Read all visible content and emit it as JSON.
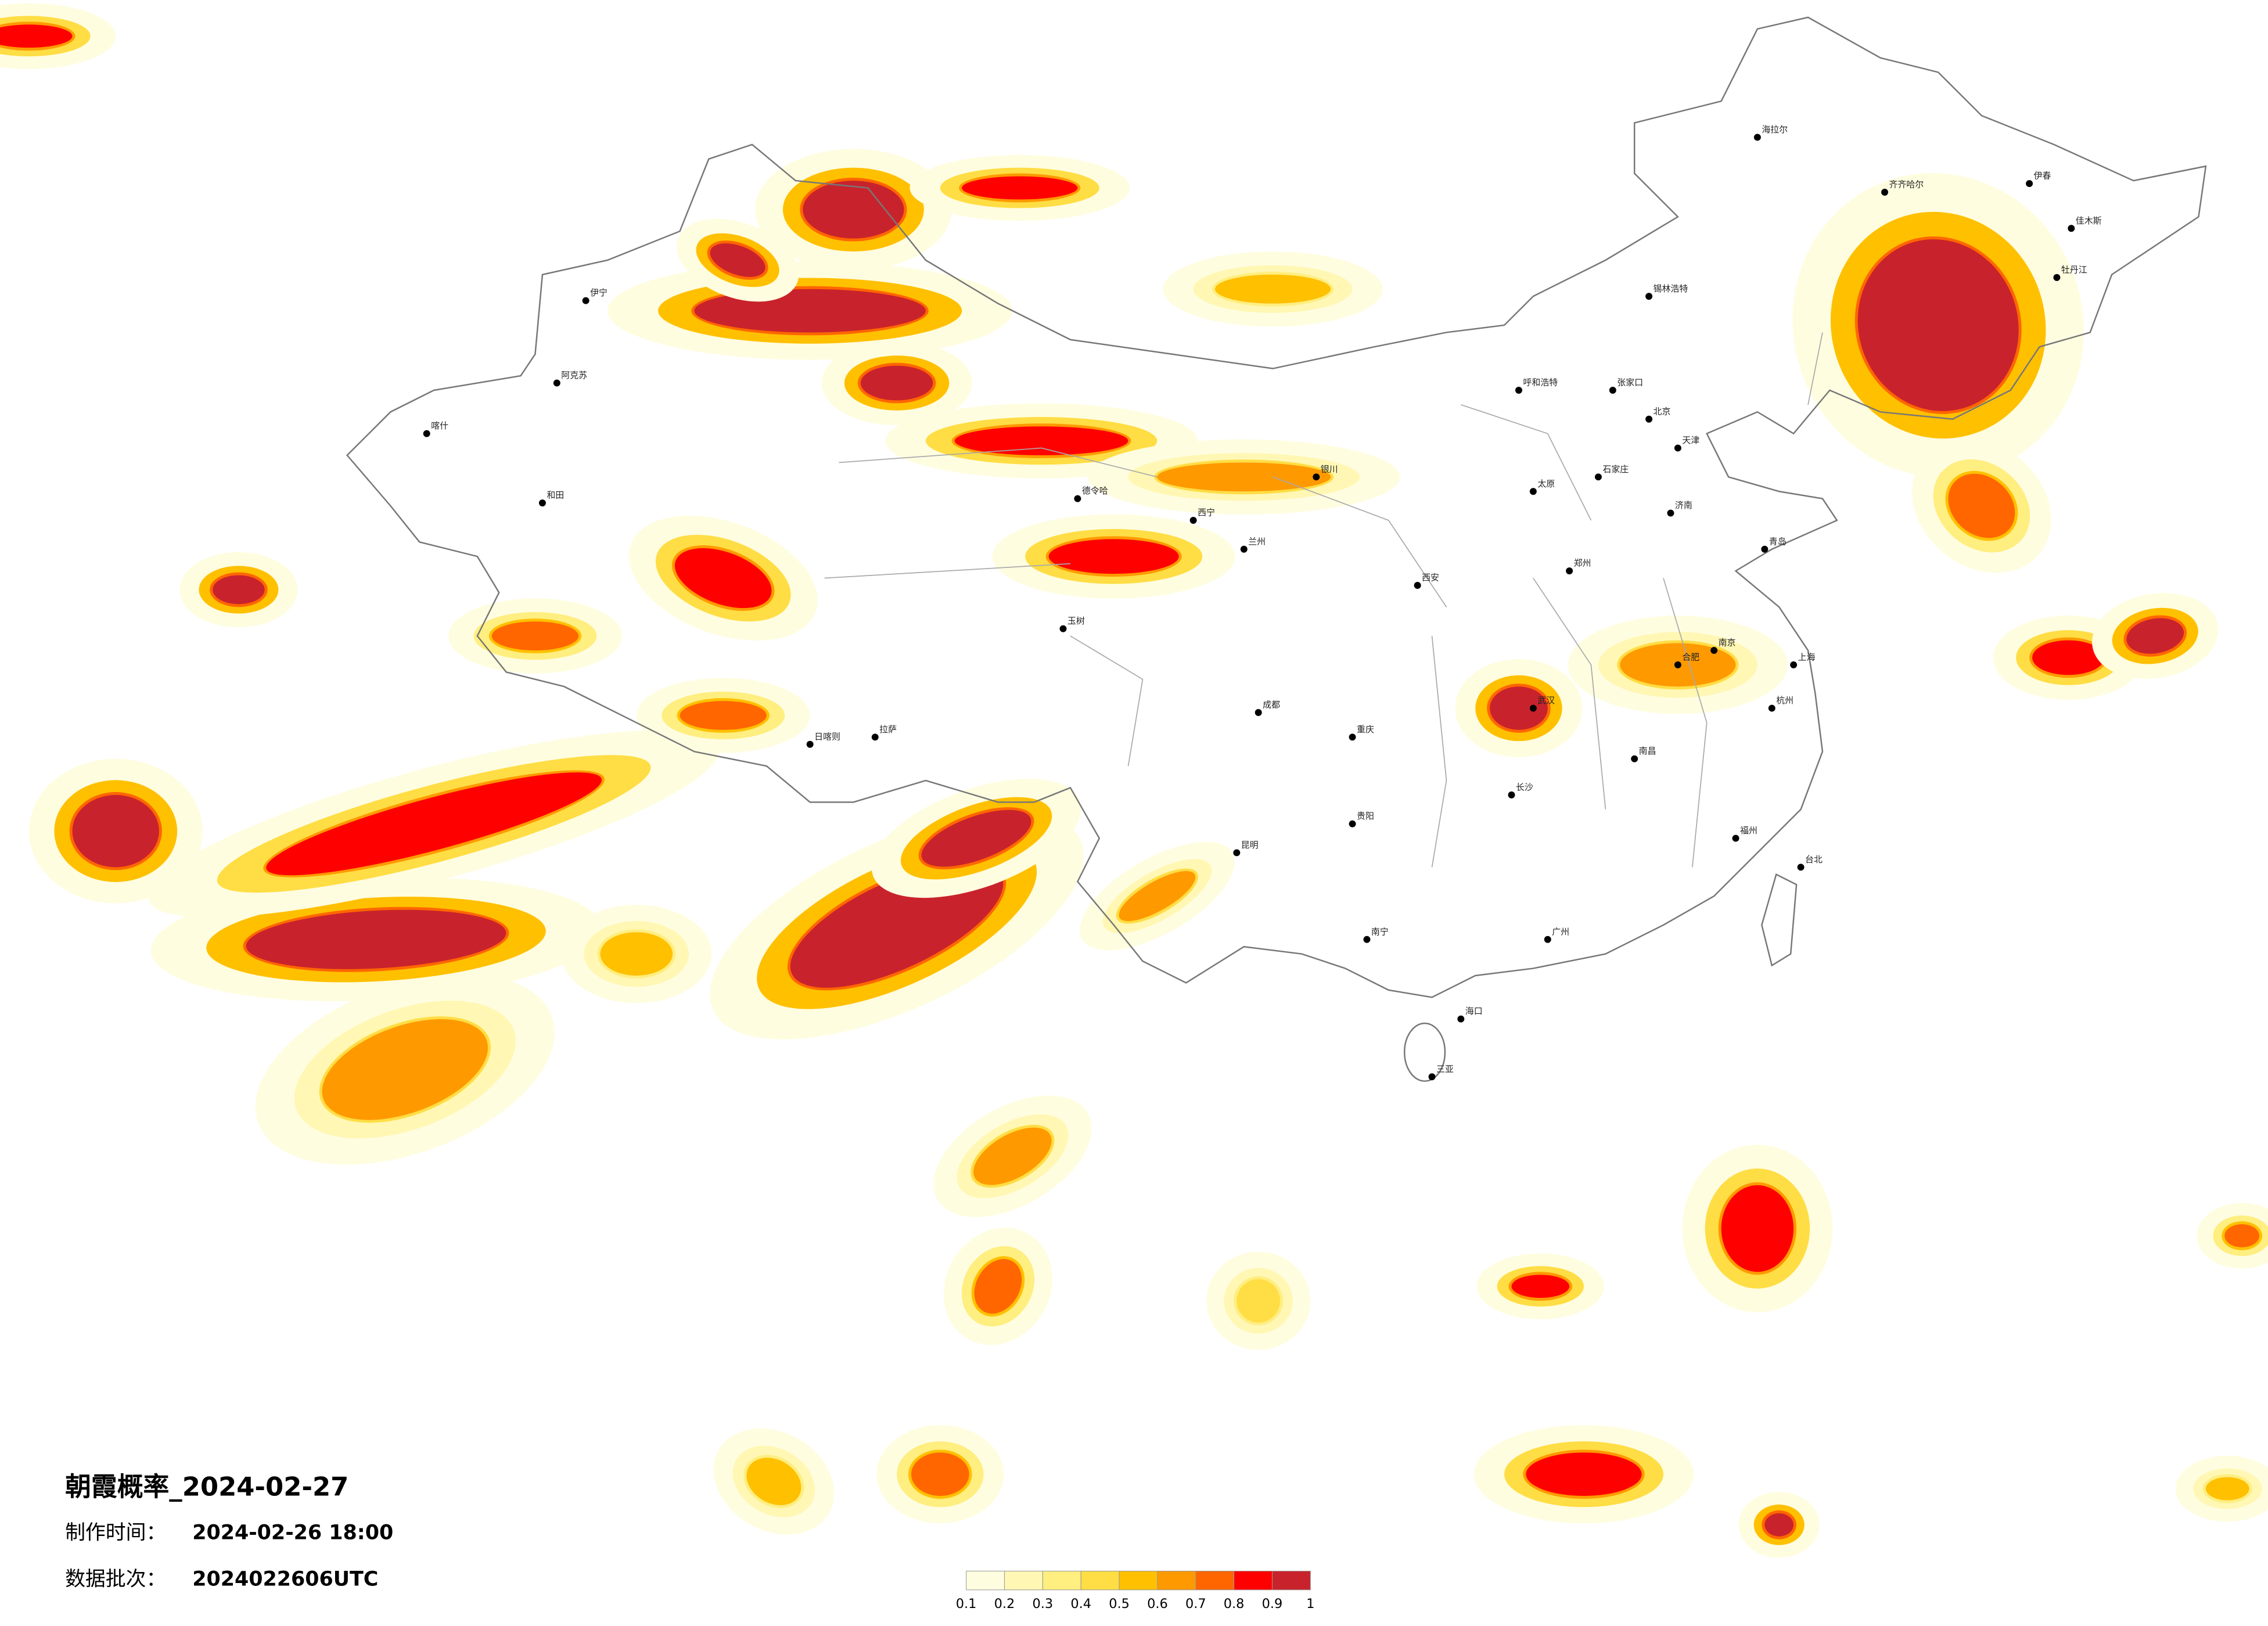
{
  "title": "朝霞概率_2024-02-27",
  "info": [
    {
      "label": "制作时间：",
      "value": "2024-02-26 18:00"
    },
    {
      "label": "数据批次：",
      "value": "2024022606UTC"
    }
  ],
  "legend": {
    "ticks": [
      0.1,
      0.2,
      0.3,
      0.4,
      0.5,
      0.6,
      0.7,
      0.8,
      0.9,
      1
    ],
    "colors": [
      "#fffde0",
      "#fff7b3",
      "#ffee80",
      "#ffdd44",
      "#ffc000",
      "#ff9900",
      "#ff6600",
      "#ff0000",
      "#c8232c"
    ]
  },
  "cities": [
    "海拉尔",
    "齐齐哈尔",
    "伊春",
    "佳木斯",
    "牡丹江",
    "锡林浩特",
    "呼和浩特",
    "张家口",
    "北京",
    "天津",
    "石家庄",
    "太原",
    "济南",
    "青岛",
    "郑州",
    "西安",
    "兰州",
    "西宁",
    "银川",
    "拉萨",
    "日喀则",
    "和田",
    "伊宁",
    "喀什",
    "阿克苏",
    "德令哈",
    "玉树",
    "成都",
    "重庆",
    "贵阳",
    "昆明",
    "南宁",
    "广州",
    "福州",
    "台北",
    "海口",
    "三亚",
    "武汉",
    "南京",
    "上海",
    "杭州",
    "长沙",
    "南昌",
    "合肥"
  ]
}
